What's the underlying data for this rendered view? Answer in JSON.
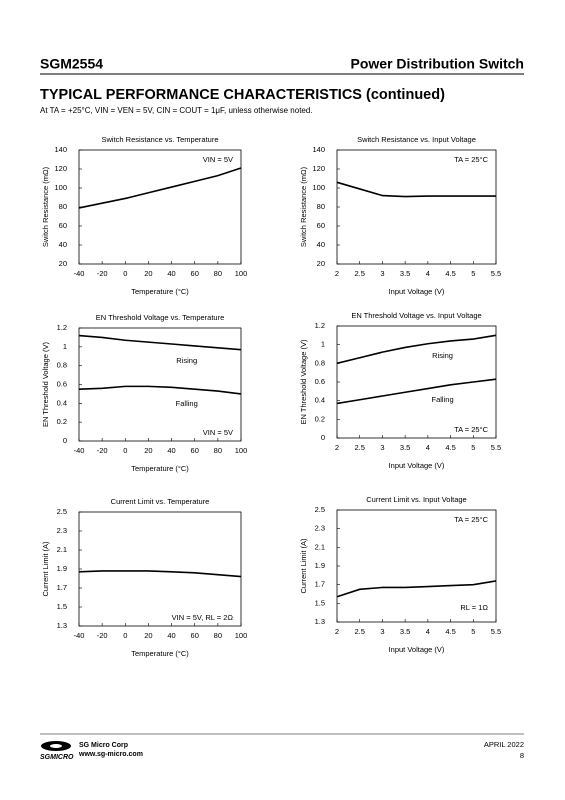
{
  "header": {
    "part": "SGM2554",
    "product": "Power Distribution Switch",
    "title": "TYPICAL PERFORMANCE CHARACTERISTICS (continued)",
    "conditions": "At TA = +25°C, VIN = VEN = 5V, CIN = COUT = 1μF, unless otherwise noted."
  },
  "footer": {
    "company": "SG Micro Corp",
    "website": "www.sg-micro.com",
    "logo": "SGMICRO",
    "date": "APRIL 2022",
    "page": "8"
  },
  "chart_data": [
    {
      "type": "line",
      "title": "Switch Resistance vs. Temperature",
      "xlabel": "Temperature (°C)",
      "ylabel": "Switch Resistance (mΩ)",
      "annotation": "VIN = 5V",
      "x": [
        -40,
        -20,
        0,
        20,
        40,
        60,
        80,
        100
      ],
      "series": [
        {
          "color": "#000000",
          "values": [
            79,
            84,
            89,
            95,
            101,
            107,
            113,
            121
          ]
        }
      ],
      "xlim": [
        -40,
        100
      ],
      "xticks": [
        -40,
        -20,
        0,
        20,
        40,
        60,
        80,
        100
      ],
      "ylim": [
        20,
        140
      ],
      "yticks": [
        20,
        40,
        60,
        80,
        100,
        120,
        140
      ]
    },
    {
      "type": "line",
      "title": "Switch Resistance vs. Input Voltage",
      "xlabel": "Input Voltage (V)",
      "ylabel": "Switch Resistance (mΩ)",
      "annotation": "TA = 25°C",
      "x": [
        2,
        2.5,
        3,
        3.5,
        4,
        4.5,
        5,
        5.5
      ],
      "series": [
        {
          "color": "#000000",
          "values": [
            106,
            99,
            92,
            91,
            91.5,
            91.5,
            91.5,
            91.5
          ]
        }
      ],
      "xlim": [
        2,
        5.5
      ],
      "xticks": [
        2,
        2.5,
        3,
        3.5,
        4,
        4.5,
        5,
        5.5
      ],
      "ylim": [
        20,
        140
      ],
      "yticks": [
        20,
        40,
        60,
        80,
        100,
        120,
        140
      ]
    },
    {
      "type": "line",
      "title": "EN Threshold Voltage vs. Temperature",
      "xlabel": "Temperature (°C)",
      "ylabel": "EN Threshold Voltage (V)",
      "annotation": "VIN = 5V",
      "x": [
        -40,
        -20,
        0,
        20,
        40,
        60,
        80,
        100
      ],
      "series": [
        {
          "name": "Rising",
          "color": "#000000",
          "values": [
            1.12,
            1.1,
            1.07,
            1.05,
            1.03,
            1.01,
            0.99,
            0.97
          ]
        },
        {
          "name": "Falling",
          "color": "#000000",
          "values": [
            0.55,
            0.56,
            0.58,
            0.58,
            0.57,
            0.55,
            0.53,
            0.5
          ]
        }
      ],
      "xlim": [
        -40,
        100
      ],
      "xticks": [
        -40,
        -20,
        0,
        20,
        40,
        60,
        80,
        100
      ],
      "ylim": [
        0,
        1.2
      ],
      "yticks": [
        0,
        0.2,
        0.4,
        0.6,
        0.8,
        1,
        1.2
      ]
    },
    {
      "type": "line",
      "title": "EN Threshold Voltage vs. Input Voltage",
      "xlabel": "Input Voltage (V)",
      "ylabel": "EN Threshold Voltage (V)",
      "annotation": "TA = 25°C",
      "x": [
        2,
        2.5,
        3,
        3.5,
        4,
        4.5,
        5,
        5.5
      ],
      "series": [
        {
          "name": "Rising",
          "color": "#000000",
          "values": [
            0.8,
            0.86,
            0.92,
            0.97,
            1.01,
            1.04,
            1.06,
            1.1
          ]
        },
        {
          "name": "Falling",
          "color": "#000000",
          "values": [
            0.37,
            0.41,
            0.45,
            0.49,
            0.53,
            0.57,
            0.6,
            0.63
          ]
        }
      ],
      "xlim": [
        2,
        5.5
      ],
      "xticks": [
        2,
        2.5,
        3,
        3.5,
        4,
        4.5,
        5,
        5.5
      ],
      "ylim": [
        0,
        1.2
      ],
      "yticks": [
        0,
        0.2,
        0.4,
        0.6,
        0.8,
        1,
        1.2
      ]
    },
    {
      "type": "line",
      "title": "Current Limit vs. Temperature",
      "xlabel": "Temperature (°C)",
      "ylabel": "Current Limit (A)",
      "annotation": "VIN = 5V,  RL = 2Ω",
      "x": [
        -40,
        -20,
        0,
        20,
        40,
        60,
        80,
        100
      ],
      "series": [
        {
          "color": "#000000",
          "values": [
            1.87,
            1.88,
            1.88,
            1.88,
            1.87,
            1.86,
            1.84,
            1.82
          ]
        }
      ],
      "xlim": [
        -40,
        100
      ],
      "xticks": [
        -40,
        -20,
        0,
        20,
        40,
        60,
        80,
        100
      ],
      "ylim": [
        1.3,
        2.5
      ],
      "yticks": [
        1.3,
        1.5,
        1.7,
        1.9,
        2.1,
        2.3,
        2.5
      ]
    },
    {
      "type": "line",
      "title": "Current Limit vs. Input Voltage",
      "xlabel": "Input Voltage (V)",
      "ylabel": "Current Limit (A)",
      "annotation": "TA = 25°C",
      "annotation2": "RL = 1Ω",
      "x": [
        2,
        2.5,
        3,
        3.5,
        4,
        4.5,
        5,
        5.5
      ],
      "series": [
        {
          "color": "#000000",
          "values": [
            1.57,
            1.65,
            1.67,
            1.67,
            1.68,
            1.69,
            1.7,
            1.74
          ]
        }
      ],
      "xlim": [
        2,
        5.5
      ],
      "xticks": [
        2,
        2.5,
        3,
        3.5,
        4,
        4.5,
        5,
        5.5
      ],
      "ylim": [
        1.3,
        2.5
      ],
      "yticks": [
        1.3,
        1.5,
        1.7,
        1.9,
        2.1,
        2.3,
        2.5
      ]
    }
  ]
}
